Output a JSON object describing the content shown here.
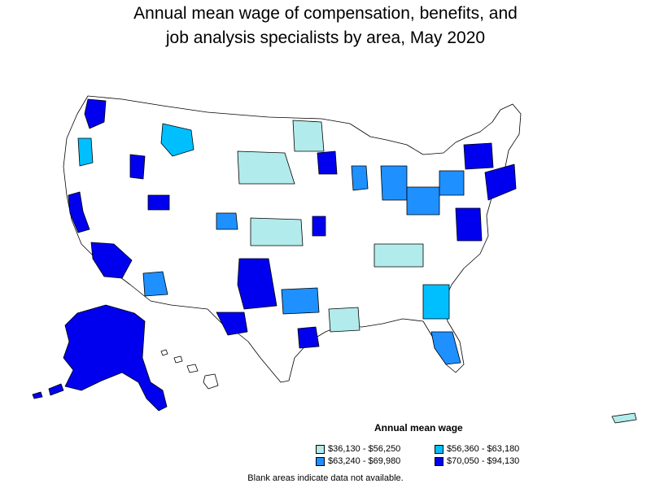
{
  "title_line1": "Annual mean wage of compensation, benefits, and",
  "title_line2": "job analysis specialists by area, May 2020",
  "legend": {
    "title": "Annual mean wage",
    "items": [
      {
        "label": "$36,130 - $56,250",
        "color": "#b2ebeb"
      },
      {
        "label": "$56,360 - $63,180",
        "color": "#00bfff"
      },
      {
        "label": "$63,240 - $69,980",
        "color": "#1e90ff"
      },
      {
        "label": "$70,050 - $94,130",
        "color": "#0000ee"
      }
    ]
  },
  "footnote": "Blank areas indicate data not available."
}
